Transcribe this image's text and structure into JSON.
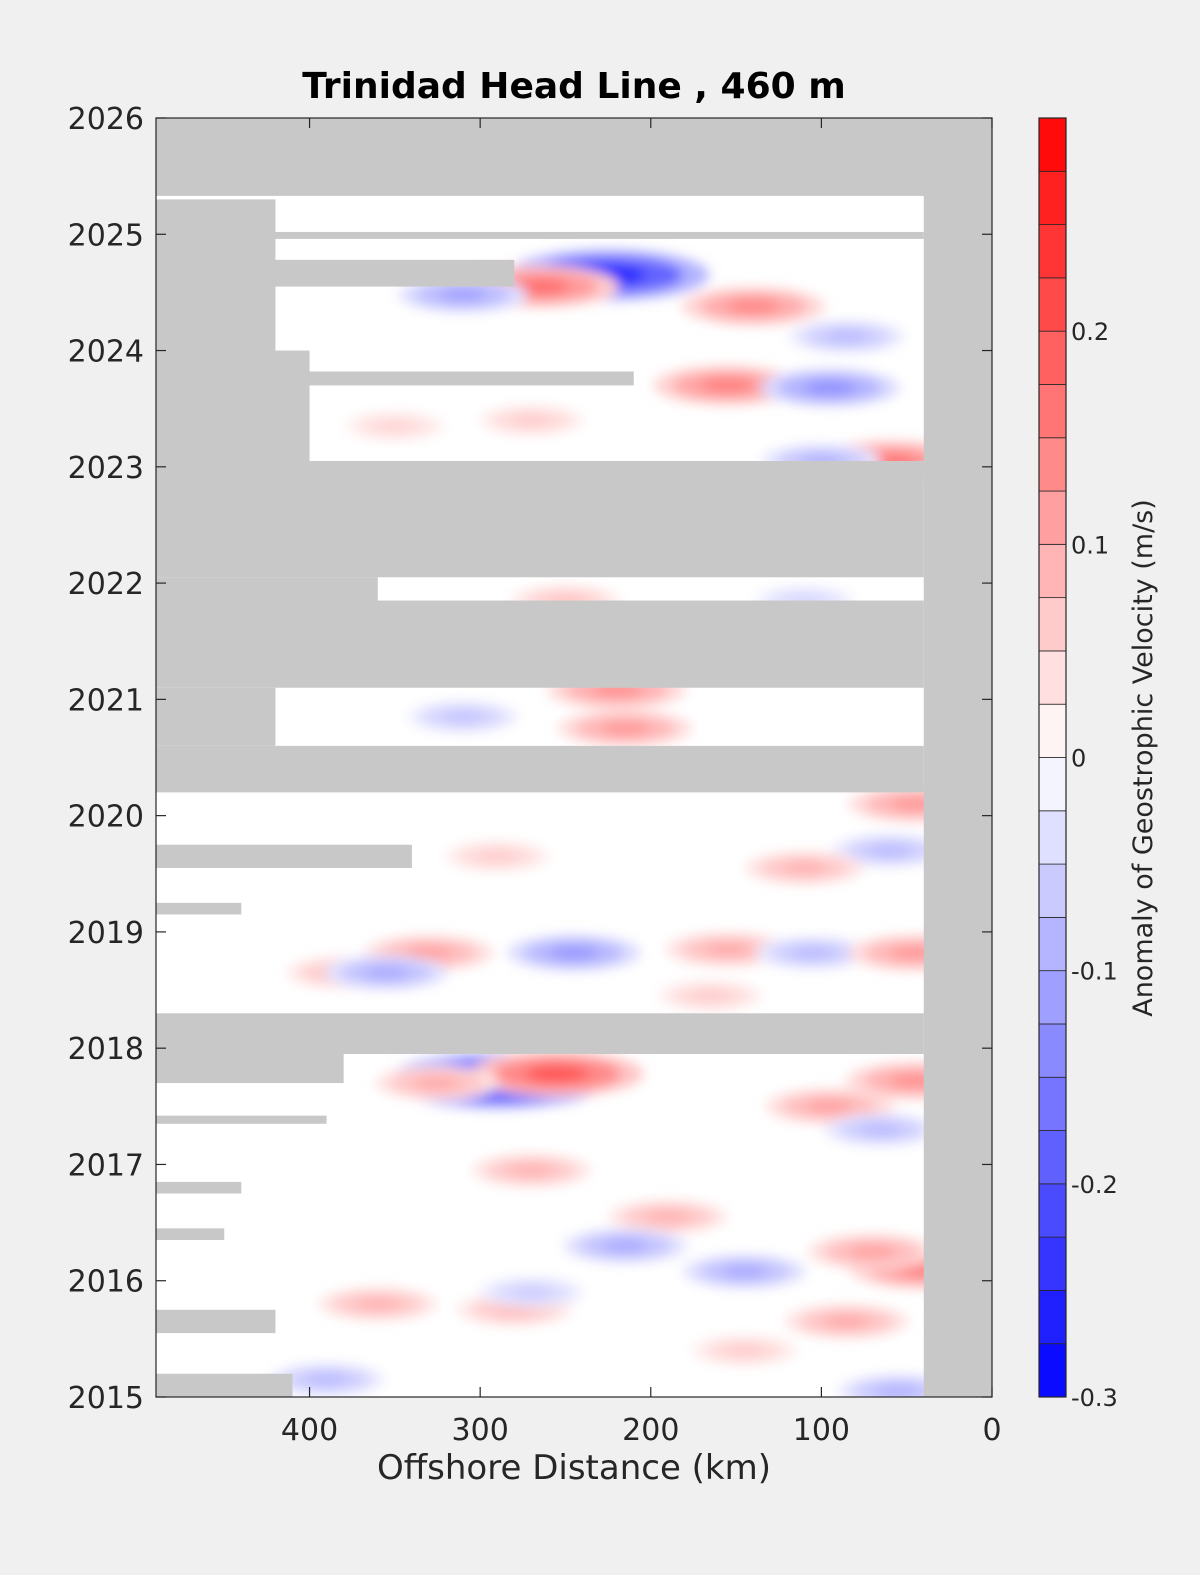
{
  "chart_data": {
    "type": "heatmap",
    "title": "Trinidad Head Line , 460 m",
    "xlabel": "Offshore Distance (km)",
    "ylabel": "",
    "x_direction": "reversed",
    "xlim": [
      0,
      490
    ],
    "ylim": [
      2015,
      2026
    ],
    "xticks": [
      400,
      300,
      200,
      100,
      0
    ],
    "yticks": [
      2015,
      2016,
      2017,
      2018,
      2019,
      2020,
      2021,
      2022,
      2023,
      2024,
      2025,
      2026
    ],
    "grid": false,
    "missing_color": "#c8c8c8",
    "colorbar": {
      "label": "Anomaly of Geostrophic Velocity (m/s)",
      "range": [
        -0.3,
        0.3
      ],
      "step": 0.025,
      "ticks": [
        -0.3,
        -0.2,
        -0.1,
        0,
        0.1,
        0.2
      ],
      "low_color": "#0000ff",
      "mid_color": "#ffffff",
      "high_color": "#ff0000"
    },
    "no_data": {
      "always_missing": [
        {
          "x": [
            0,
            40
          ],
          "y": [
            2015,
            2026
          ]
        },
        {
          "x": [
            0,
            490
          ],
          "y": [
            2025.33,
            2026
          ]
        }
      ],
      "gaps": [
        {
          "x": [
            40,
            490
          ],
          "y": [
            2022.05,
            2023.05
          ]
        },
        {
          "x": [
            40,
            490
          ],
          "y": [
            2021.1,
            2021.85
          ]
        },
        {
          "x": [
            40,
            490
          ],
          "y": [
            2020.2,
            2020.6
          ]
        },
        {
          "x": [
            40,
            490
          ],
          "y": [
            2017.95,
            2018.3
          ]
        },
        {
          "x": [
            380,
            490
          ],
          "y": [
            2017.7,
            2017.95
          ]
        },
        {
          "x": [
            40,
            490
          ],
          "y": [
            2024.96,
            2025.02
          ]
        },
        {
          "x": [
            280,
            490
          ],
          "y": [
            2024.55,
            2024.78
          ]
        },
        {
          "x": [
            210,
            490
          ],
          "y": [
            2023.7,
            2023.82
          ]
        },
        {
          "x": [
            400,
            490
          ],
          "y": [
            2023.05,
            2024.0
          ]
        },
        {
          "x": [
            420,
            490
          ],
          "y": [
            2024.0,
            2025.3
          ]
        },
        {
          "x": [
            420,
            490
          ],
          "y": [
            2020.6,
            2021.1
          ]
        },
        {
          "x": [
            360,
            490
          ],
          "y": [
            2021.85,
            2022.05
          ]
        },
        {
          "x": [
            340,
            490
          ],
          "y": [
            2019.55,
            2019.75
          ]
        },
        {
          "x": [
            440,
            490
          ],
          "y": [
            2019.15,
            2019.25
          ]
        },
        {
          "x": [
            420,
            490
          ],
          "y": [
            2015.55,
            2015.75
          ]
        },
        {
          "x": [
            410,
            490
          ],
          "y": [
            2015.0,
            2015.2
          ]
        },
        {
          "x": [
            440,
            490
          ],
          "y": [
            2016.75,
            2016.85
          ]
        },
        {
          "x": [
            450,
            490
          ],
          "y": [
            2016.35,
            2016.45
          ]
        },
        {
          "x": [
            390,
            490
          ],
          "y": [
            2017.35,
            2017.42
          ]
        }
      ]
    },
    "anomaly_features": [
      {
        "x": 225,
        "y": 2024.65,
        "value": -0.26
      },
      {
        "x": 265,
        "y": 2024.55,
        "value": 0.17
      },
      {
        "x": 310,
        "y": 2024.48,
        "value": -0.11
      },
      {
        "x": 140,
        "y": 2024.38,
        "value": 0.14
      },
      {
        "x": 85,
        "y": 2024.12,
        "value": -0.08
      },
      {
        "x": 155,
        "y": 2023.7,
        "value": 0.15
      },
      {
        "x": 95,
        "y": 2023.68,
        "value": -0.13
      },
      {
        "x": 60,
        "y": 2023.05,
        "value": 0.16
      },
      {
        "x": 100,
        "y": 2023.05,
        "value": -0.09
      },
      {
        "x": 270,
        "y": 2023.4,
        "value": 0.06
      },
      {
        "x": 350,
        "y": 2023.35,
        "value": 0.05
      },
      {
        "x": 220,
        "y": 2021.08,
        "value": 0.13
      },
      {
        "x": 215,
        "y": 2020.75,
        "value": 0.12
      },
      {
        "x": 310,
        "y": 2020.85,
        "value": -0.07
      },
      {
        "x": 250,
        "y": 2021.85,
        "value": 0.07
      },
      {
        "x": 110,
        "y": 2021.85,
        "value": -0.05
      },
      {
        "x": 45,
        "y": 2020.1,
        "value": 0.12
      },
      {
        "x": 60,
        "y": 2019.7,
        "value": -0.08
      },
      {
        "x": 290,
        "y": 2019.65,
        "value": 0.06
      },
      {
        "x": 245,
        "y": 2018.82,
        "value": -0.12
      },
      {
        "x": 330,
        "y": 2018.82,
        "value": 0.11
      },
      {
        "x": 380,
        "y": 2018.65,
        "value": 0.08
      },
      {
        "x": 355,
        "y": 2018.65,
        "value": -0.1
      },
      {
        "x": 155,
        "y": 2018.85,
        "value": 0.1
      },
      {
        "x": 105,
        "y": 2018.82,
        "value": -0.08
      },
      {
        "x": 45,
        "y": 2018.82,
        "value": 0.12
      },
      {
        "x": 165,
        "y": 2018.45,
        "value": 0.06
      },
      {
        "x": 110,
        "y": 2019.55,
        "value": 0.09
      },
      {
        "x": 290,
        "y": 2017.72,
        "value": -0.3
      },
      {
        "x": 255,
        "y": 2017.78,
        "value": 0.2
      },
      {
        "x": 325,
        "y": 2017.7,
        "value": 0.1
      },
      {
        "x": 45,
        "y": 2017.72,
        "value": 0.13
      },
      {
        "x": 95,
        "y": 2017.5,
        "value": 0.11
      },
      {
        "x": 65,
        "y": 2017.3,
        "value": -0.08
      },
      {
        "x": 270,
        "y": 2016.95,
        "value": 0.09
      },
      {
        "x": 190,
        "y": 2016.55,
        "value": 0.09
      },
      {
        "x": 145,
        "y": 2016.08,
        "value": -0.1
      },
      {
        "x": 215,
        "y": 2016.3,
        "value": -0.1
      },
      {
        "x": 40,
        "y": 2016.1,
        "value": 0.15
      },
      {
        "x": 70,
        "y": 2016.25,
        "value": 0.11
      },
      {
        "x": 85,
        "y": 2015.65,
        "value": 0.1
      },
      {
        "x": 280,
        "y": 2015.75,
        "value": 0.08
      },
      {
        "x": 360,
        "y": 2015.8,
        "value": 0.09
      },
      {
        "x": 270,
        "y": 2015.9,
        "value": -0.06
      },
      {
        "x": 390,
        "y": 2015.15,
        "value": -0.08
      },
      {
        "x": 145,
        "y": 2015.4,
        "value": 0.06
      },
      {
        "x": 55,
        "y": 2015.05,
        "value": -0.09
      }
    ]
  }
}
